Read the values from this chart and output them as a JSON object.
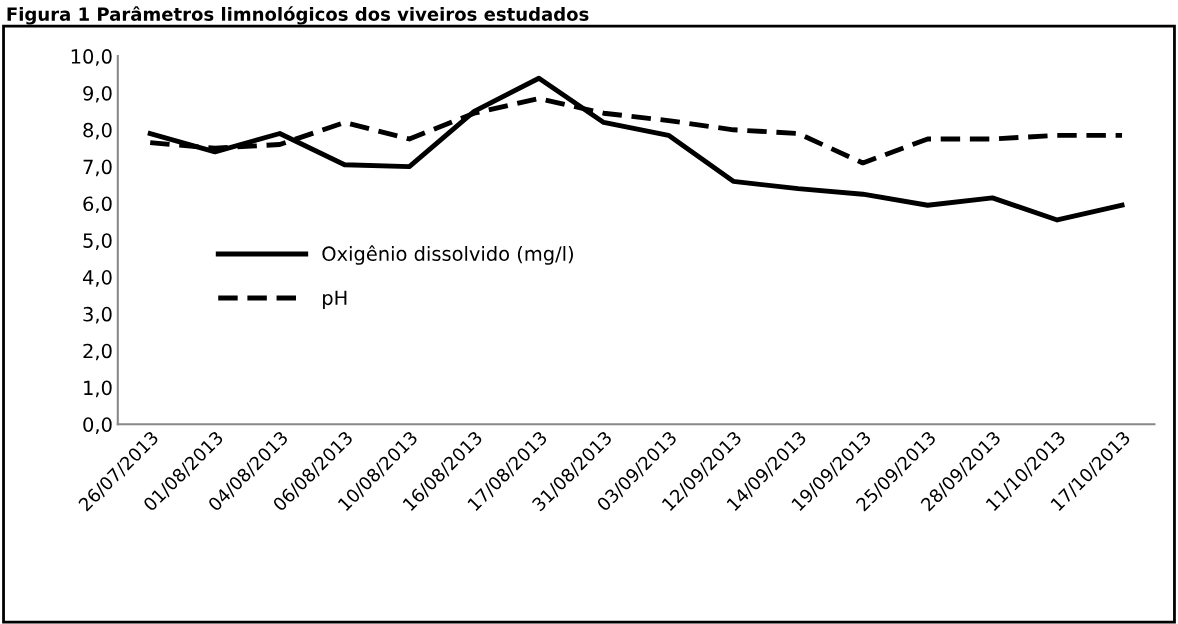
{
  "chart_data": {
    "type": "line",
    "title": "Figura 1 Parâmetros limnológicos dos viveiros estudados",
    "categories": [
      "26/07/2013",
      "01/08/2013",
      "04/08/2013",
      "06/08/2013",
      "10/08/2013",
      "16/08/2013",
      "17/08/2013",
      "31/08/2013",
      "03/09/2013",
      "12/09/2013",
      "14/09/2013",
      "19/09/2013",
      "25/09/2013",
      "28/09/2013",
      "11/10/2013",
      "17/10/2013"
    ],
    "series": [
      {
        "name": "Oxigênio dissolvido (mg/l)",
        "color": "#000000",
        "line_style": "solid",
        "values": [
          7.9,
          7.4,
          7.9,
          7.05,
          7.0,
          8.5,
          9.4,
          8.2,
          7.85,
          6.6,
          6.4,
          6.25,
          5.95,
          6.15,
          5.55,
          5.95
        ]
      },
      {
        "name": "pH",
        "color": "#000000",
        "line_style": "dashed",
        "values": [
          7.65,
          7.5,
          7.6,
          8.2,
          7.75,
          8.45,
          8.85,
          8.45,
          8.25,
          8.0,
          7.9,
          7.1,
          7.75,
          7.75,
          7.85,
          7.85
        ]
      }
    ],
    "ylim": [
      0,
      10
    ],
    "yticks": [
      {
        "value": 0,
        "label": "0,0"
      },
      {
        "value": 1,
        "label": "1,0"
      },
      {
        "value": 2,
        "label": "2,0"
      },
      {
        "value": 3,
        "label": "3,0"
      },
      {
        "value": 4,
        "label": "4,0"
      },
      {
        "value": 5,
        "label": "5,0"
      },
      {
        "value": 6,
        "label": "6,0"
      },
      {
        "value": 7,
        "label": "7,0"
      },
      {
        "value": 8,
        "label": "8,0"
      },
      {
        "value": 9,
        "label": "9,0"
      },
      {
        "value": 10,
        "label": "10,0"
      }
    ],
    "grid": false,
    "legend": "center left",
    "marker": "none"
  }
}
